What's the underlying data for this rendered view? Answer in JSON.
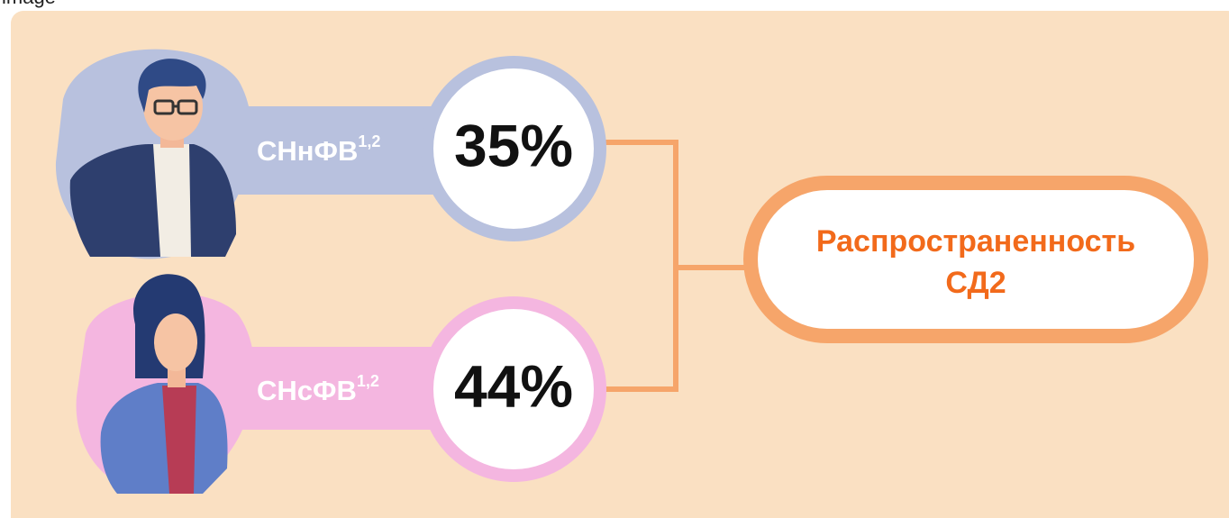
{
  "header": {
    "caption": "image"
  },
  "groups": [
    {
      "label": "СНнФВ",
      "sup": "1,2",
      "value": "35%"
    },
    {
      "label": "СНсФВ",
      "sup": "1,2",
      "value": "44%"
    }
  ],
  "target": {
    "lines": [
      "Распространенность",
      "СД2"
    ]
  }
}
